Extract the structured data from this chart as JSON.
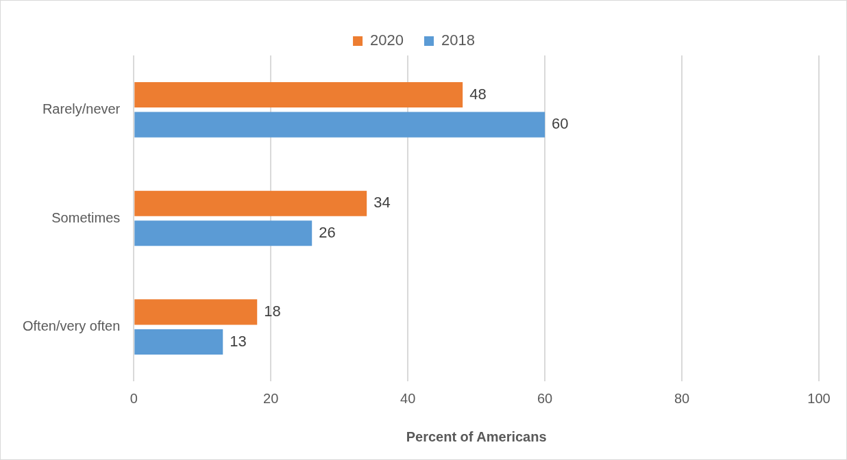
{
  "chart_data": {
    "type": "bar",
    "orientation": "horizontal",
    "xlabel": "Percent of Americans",
    "categories": [
      "Rarely/never",
      "Sometimes",
      "Often/very often"
    ],
    "series": [
      {
        "name": "2020",
        "color": "#ed7d31",
        "values": [
          48,
          34,
          18
        ]
      },
      {
        "name": "2018",
        "color": "#5b9bd5",
        "values": [
          60,
          26,
          13
        ]
      }
    ],
    "xlim": [
      0,
      100
    ],
    "xticks": [
      0,
      20,
      40,
      60,
      80,
      100
    ],
    "grid": "x",
    "legend": "top",
    "data_labels": true
  }
}
